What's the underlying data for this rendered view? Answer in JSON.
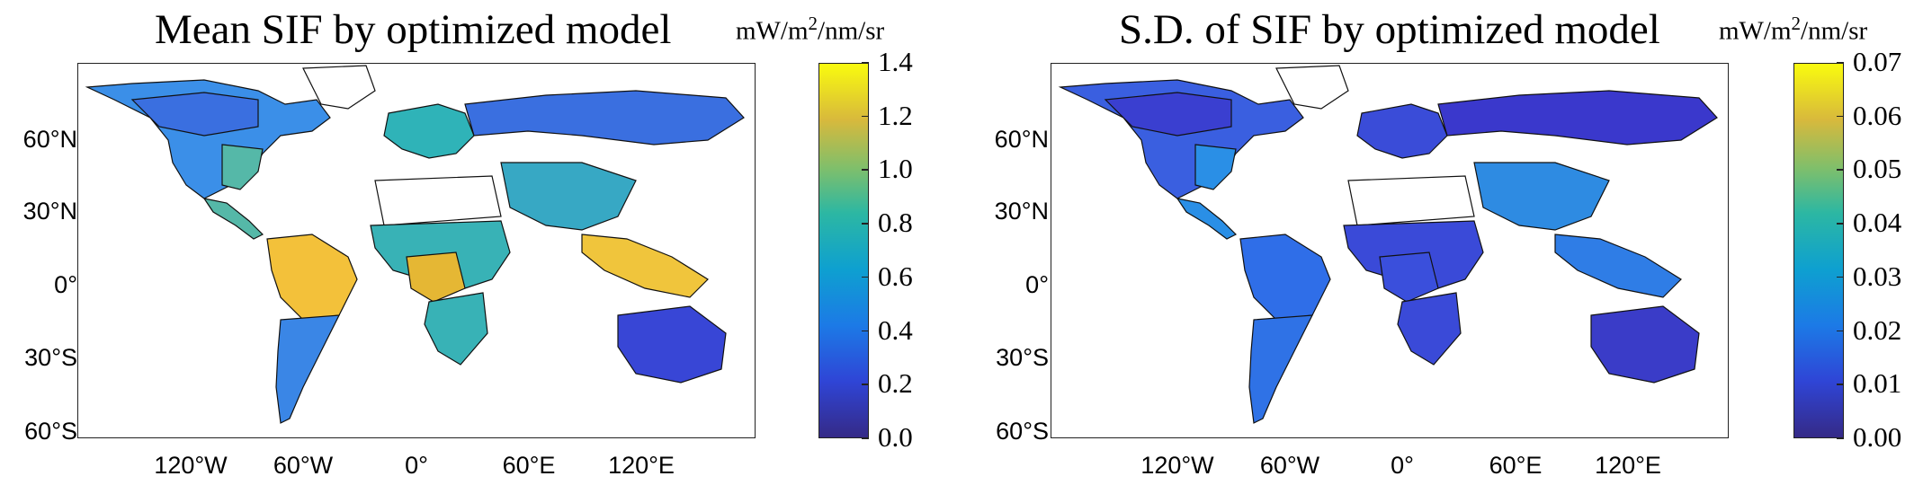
{
  "panels": [
    {
      "title": "Mean SIF by optimized model",
      "unit": {
        "prefix": "mW/m",
        "sup": "2",
        "suffix": "/nm/sr"
      },
      "colorbar_ticks": [
        "1.4",
        "1.2",
        "1.0",
        "0.8",
        "0.6",
        "0.4",
        "0.2",
        "0.0"
      ],
      "lat_labels": [
        "60°N",
        "30°N",
        "0°",
        "30°S",
        "60°S"
      ],
      "lon_labels": [
        "120°W",
        "60°W",
        "0°",
        "60°E",
        "120°E"
      ],
      "regions": {
        "amazon": "#f3c13a",
        "congo": "#e5b734",
        "se_asia": "#f0c53c",
        "north_america": "#3b8fe8",
        "eastern_us": "#55b8a8",
        "boreal": "#3a6fe0",
        "siberia": "#3a6fe0",
        "europe": "#2fb3b8",
        "africa_savanna": "#38b2b6",
        "australia": "#3846d6",
        "india_china": "#37a8c4",
        "south_america_south": "#3a86e6"
      }
    },
    {
      "title": "S.D. of SIF by optimized model",
      "unit": {
        "prefix": "mW/m",
        "sup": "2",
        "suffix": "/nm/sr"
      },
      "colorbar_ticks": [
        "0.07",
        "0.06",
        "0.05",
        "0.04",
        "0.03",
        "0.02",
        "0.01",
        "0.00"
      ],
      "lat_labels": [
        "60°N",
        "30°N",
        "0°",
        "30°S",
        "60°S"
      ],
      "lon_labels": [
        "120°W",
        "60°W",
        "0°",
        "60°E",
        "120°E"
      ],
      "regions": {
        "amazon": "#2f6ee8",
        "congo": "#3a4fdc",
        "se_asia": "#2f7de6",
        "north_america": "#3a5fe0",
        "eastern_us": "#2a8fe6",
        "boreal": "#3a3fd0",
        "siberia": "#3a38cc",
        "europe": "#3a4cd8",
        "africa_savanna": "#3a4ad8",
        "australia": "#3a3cc8",
        "india_china": "#2e8be2",
        "south_america_south": "#2f72e6"
      }
    }
  ]
}
